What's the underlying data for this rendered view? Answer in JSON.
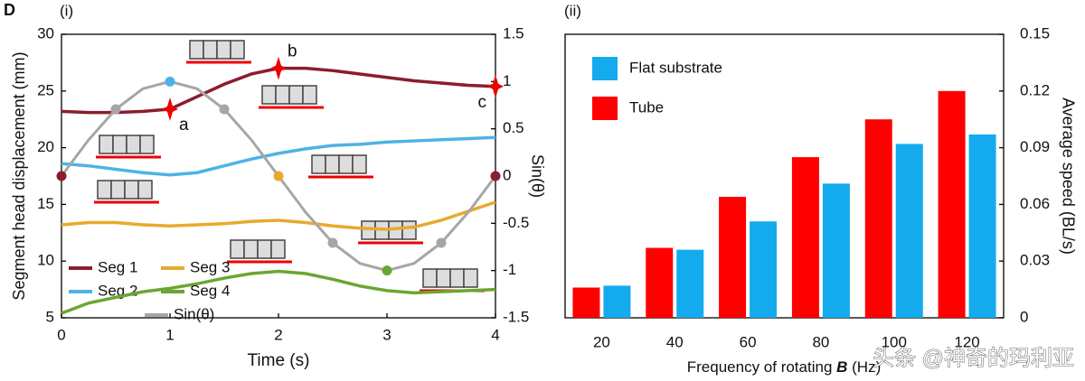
{
  "figure_label": "D",
  "watermark": "头条 @神奇的玛利亚",
  "chart_data": [
    {
      "type": "line",
      "panel": "(i)",
      "x_label": "Time (s)",
      "y_label": "Segment head displacement (mm)",
      "y2_label": "Sin(θ)",
      "x": [
        0,
        0.25,
        0.5,
        0.75,
        1,
        1.25,
        1.5,
        1.75,
        2,
        2.25,
        2.5,
        2.75,
        3,
        3.25,
        3.5,
        3.75,
        4
      ],
      "xlim": [
        0,
        4
      ],
      "xticks": [
        0,
        1,
        2,
        3,
        4
      ],
      "ylim": [
        5,
        30
      ],
      "yticks": [
        5,
        10,
        15,
        20,
        25,
        30
      ],
      "y2lim": [
        -1.5,
        1.5
      ],
      "y2ticks": [
        -1.5,
        -1,
        -0.5,
        0,
        0.5,
        1,
        1.5
      ],
      "series": [
        {
          "name": "Seg 1",
          "color": "#8c1c2e",
          "values": [
            23.2,
            23.1,
            23.1,
            23.2,
            23.4,
            24.5,
            25.6,
            26.5,
            27.0,
            27.0,
            26.8,
            26.5,
            26.2,
            25.9,
            25.7,
            25.5,
            25.4
          ]
        },
        {
          "name": "Seg 2",
          "color": "#4db3e6",
          "values": [
            18.6,
            18.4,
            18.1,
            17.8,
            17.6,
            17.8,
            18.4,
            19.0,
            19.5,
            19.9,
            20.2,
            20.3,
            20.5,
            20.6,
            20.7,
            20.8,
            20.9
          ]
        },
        {
          "name": "Seg 3",
          "color": "#e8aa2c",
          "values": [
            13.2,
            13.4,
            13.4,
            13.2,
            13.1,
            13.2,
            13.3,
            13.5,
            13.6,
            13.4,
            13.1,
            12.9,
            12.8,
            13.0,
            13.6,
            14.4,
            15.2
          ]
        },
        {
          "name": "Seg 4",
          "color": "#6aa632",
          "values": [
            5.4,
            6.3,
            6.8,
            7.3,
            7.6,
            8.0,
            8.5,
            8.9,
            9.1,
            8.9,
            8.4,
            7.8,
            7.4,
            7.2,
            7.3,
            7.4,
            7.5
          ]
        },
        {
          "name": "Sin(θ)",
          "color": "#a6a6a6",
          "axis": "y2",
          "values": [
            0,
            0.383,
            0.707,
            0.924,
            1,
            0.924,
            0.707,
            0.383,
            0,
            -0.383,
            -0.707,
            -0.924,
            -1,
            -0.924,
            -0.707,
            -0.383,
            0
          ]
        }
      ],
      "annotations": [
        {
          "text": "a",
          "x": 1
        },
        {
          "text": "b",
          "x": 2
        },
        {
          "text": "c",
          "x": 4
        }
      ]
    },
    {
      "type": "bar",
      "panel": "(ii)",
      "x_label": [
        "Frequency of rotating ",
        "B",
        " (Hz)"
      ],
      "y_label": "Average speed (BL/s)",
      "categories": [
        "20",
        "40",
        "60",
        "80",
        "100",
        "120"
      ],
      "ylim": [
        0,
        0.15
      ],
      "yticks": [
        0,
        0.03,
        0.06,
        0.09,
        0.12,
        0.15
      ],
      "series": [
        {
          "name": "Tube",
          "color": "#ff0000",
          "values": [
            0.016,
            0.037,
            0.064,
            0.085,
            0.105,
            0.12
          ]
        },
        {
          "name": "Flat substrate",
          "color": "#14aaee",
          "values": [
            0.017,
            0.036,
            0.051,
            0.071,
            0.092,
            0.097
          ]
        }
      ]
    }
  ]
}
